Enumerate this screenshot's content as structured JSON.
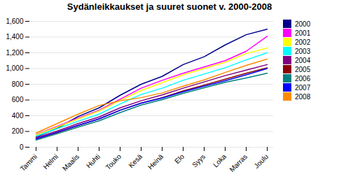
{
  "chart_data": {
    "type": "line",
    "title": "Sydänleikkaukset ja suuret suonet v. 2000-2008",
    "categories": [
      "Tammi",
      "Helmi",
      "Maalis",
      "Huhti",
      "Touko",
      "Kesä",
      "Heinä",
      "Elo",
      "Syys",
      "Loka",
      "Marras",
      "Joulu"
    ],
    "series": [
      {
        "name": "2000",
        "color": "#00008B",
        "values": [
          130,
          240,
          390,
          500,
          660,
          800,
          900,
          1050,
          1150,
          1300,
          1430,
          1500
        ]
      },
      {
        "name": "2001",
        "color": "#FF00FF",
        "values": [
          160,
          265,
          370,
          470,
          610,
          750,
          850,
          940,
          1020,
          1100,
          1220,
          1410
        ]
      },
      {
        "name": "2002",
        "color": "#FFFF00",
        "values": [
          155,
          255,
          360,
          460,
          595,
          720,
          820,
          920,
          1000,
          1080,
          1190,
          1260
        ]
      },
      {
        "name": "2003",
        "color": "#00FFFF",
        "values": [
          140,
          235,
          330,
          420,
          550,
          670,
          750,
          850,
          930,
          1010,
          1110,
          1200
        ]
      },
      {
        "name": "2004",
        "color": "#800080",
        "values": [
          120,
          205,
          300,
          385,
          500,
          590,
          665,
          750,
          830,
          910,
          980,
          1050
        ]
      },
      {
        "name": "2005",
        "color": "#8B0000",
        "values": [
          105,
          185,
          275,
          360,
          470,
          560,
          630,
          715,
          790,
          865,
          940,
          1010
        ]
      },
      {
        "name": "2006",
        "color": "#008080",
        "values": [
          90,
          170,
          255,
          335,
          440,
          535,
          605,
          685,
          755,
          825,
          880,
          940
        ]
      },
      {
        "name": "2007",
        "color": "#0000FF",
        "values": [
          105,
          190,
          278,
          360,
          470,
          560,
          625,
          705,
          775,
          845,
          920,
          1000
        ]
      },
      {
        "name": "2008",
        "color": "#FF8C00",
        "values": [
          180,
          300,
          420,
          530,
          590,
          630,
          690,
          775,
          855,
          950,
          1040,
          1120
        ]
      }
    ],
    "ylim": [
      0,
      1600
    ],
    "yticks": [
      0,
      200,
      400,
      600,
      800,
      1000,
      1200,
      1400,
      1600
    ],
    "grid": true,
    "legend": "right"
  }
}
